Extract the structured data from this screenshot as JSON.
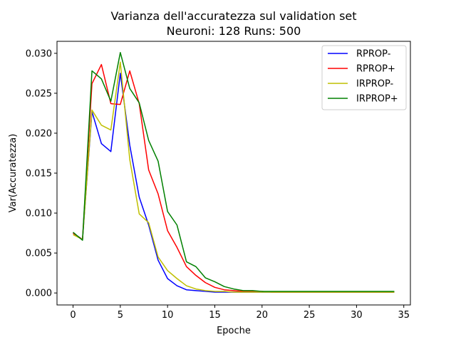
{
  "chart_data": {
    "type": "line",
    "title": "Varianza dell'accuratezza sul validation set",
    "subtitle": "Neuroni: 128 Runs: 500",
    "xlabel": "Epoche",
    "ylabel": "Var(Accuratezza)",
    "xlim": [
      -1.7,
      35.7
    ],
    "ylim": [
      -0.0015,
      0.0315
    ],
    "xticks": [
      0,
      5,
      10,
      15,
      20,
      25,
      30,
      35
    ],
    "xtick_labels": [
      "0",
      "5",
      "10",
      "15",
      "20",
      "25",
      "30",
      "35"
    ],
    "yticks": [
      0.0,
      0.005,
      0.01,
      0.015,
      0.02,
      0.025,
      0.03
    ],
    "ytick_labels": [
      "0.000",
      "0.005",
      "0.010",
      "0.015",
      "0.020",
      "0.025",
      "0.030"
    ],
    "grid": false,
    "legend_position": "top-right",
    "x": [
      0,
      1,
      2,
      3,
      4,
      5,
      6,
      7,
      8,
      9,
      10,
      11,
      12,
      13,
      14,
      15,
      16,
      17,
      18,
      19,
      20,
      21,
      22,
      23,
      24,
      25,
      26,
      27,
      28,
      29,
      30,
      31,
      32,
      33,
      34
    ],
    "series": [
      {
        "name": "RPROP-",
        "color": "#0000ff",
        "values": [
          0.0075,
          0.0067,
          0.0227,
          0.0187,
          0.0177,
          0.0275,
          0.0185,
          0.012,
          0.0085,
          0.0041,
          0.0018,
          0.0009,
          0.0004,
          0.0003,
          0.0002,
          0.0001,
          0.0001,
          0.0001,
          0.0001,
          0.0001,
          0.0001,
          0.0001,
          0.0001,
          0.0001,
          0.0001,
          0.0001,
          0.0001,
          0.0001,
          0.0001,
          0.0001,
          0.0001,
          0.0001,
          0.0001,
          0.0001,
          0.0001
        ]
      },
      {
        "name": "RPROP+",
        "color": "#ff0000",
        "values": [
          0.0075,
          0.0067,
          0.0262,
          0.0286,
          0.0237,
          0.0236,
          0.0278,
          0.0237,
          0.0154,
          0.0124,
          0.0078,
          0.0057,
          0.0033,
          0.0022,
          0.0013,
          0.0007,
          0.0004,
          0.0003,
          0.0002,
          0.0002,
          0.0002,
          0.0001,
          0.0001,
          0.0001,
          0.0001,
          0.0001,
          0.0001,
          0.0001,
          0.0001,
          0.0001,
          0.0001,
          0.0001,
          0.0001,
          0.0001,
          0.0001
        ]
      },
      {
        "name": "IRPROP-",
        "color": "#bfbf00",
        "values": [
          0.0073,
          0.0067,
          0.0229,
          0.021,
          0.0204,
          0.0289,
          0.0167,
          0.0099,
          0.0088,
          0.0045,
          0.0028,
          0.0018,
          0.0009,
          0.0005,
          0.0003,
          0.0002,
          0.0002,
          0.0001,
          0.0001,
          0.0001,
          0.0001,
          0.0001,
          0.0001,
          0.0001,
          0.0001,
          0.0001,
          0.0001,
          0.0001,
          0.0001,
          0.0001,
          0.0001,
          0.0001,
          0.0001,
          0.0001,
          0.0001
        ]
      },
      {
        "name": "IRPROP+",
        "color": "#008000",
        "values": [
          0.0076,
          0.0066,
          0.0278,
          0.0268,
          0.024,
          0.0301,
          0.0256,
          0.0238,
          0.0191,
          0.0165,
          0.0102,
          0.0085,
          0.0039,
          0.0033,
          0.0019,
          0.0014,
          0.0008,
          0.0005,
          0.0003,
          0.0003,
          0.0002,
          0.0002,
          0.0002,
          0.0002,
          0.0002,
          0.0002,
          0.0002,
          0.0002,
          0.0002,
          0.0002,
          0.0002,
          0.0002,
          0.0002,
          0.0002,
          0.0002
        ]
      }
    ]
  }
}
